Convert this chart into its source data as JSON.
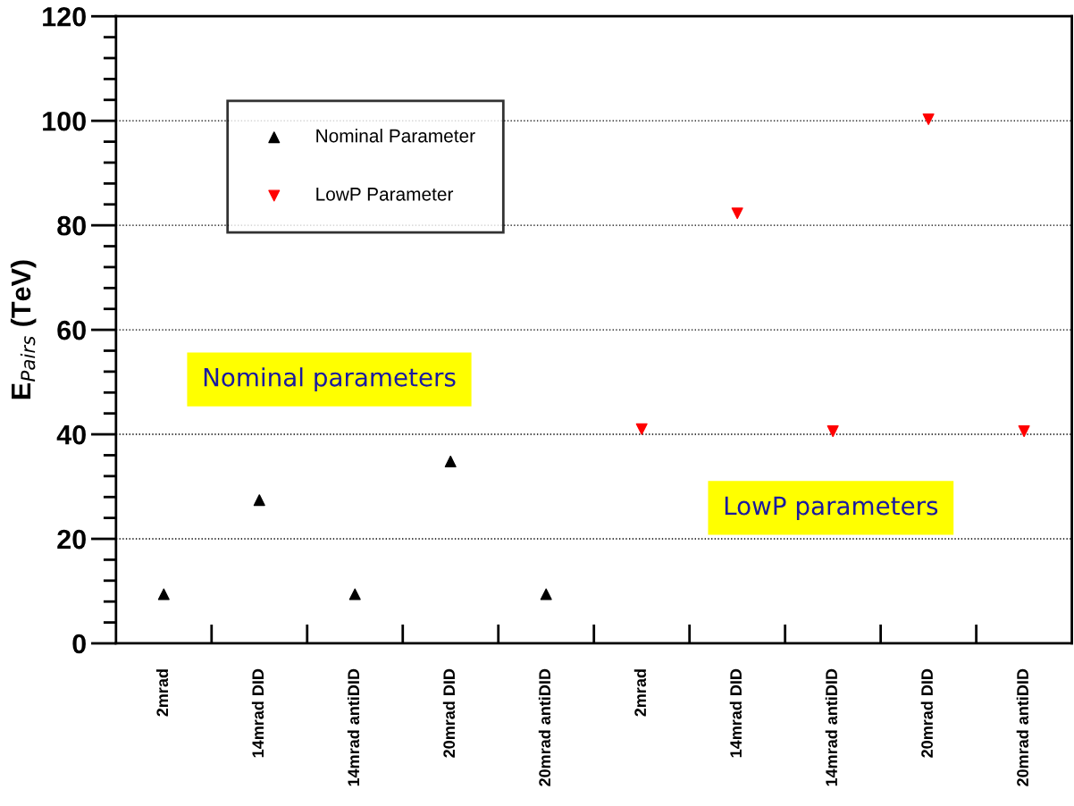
{
  "chart_data": {
    "type": "scatter",
    "ylabel": "E$_{Pairs}$ (TeV)",
    "categories": [
      "2mrad",
      "14mrad DID",
      "14mrad antiDID",
      "20mrad DID",
      "20mrad antiDID",
      "2mrad",
      "14mrad DID",
      "14mrad antiDID",
      "20mrad DID",
      "20mrad antiDID"
    ],
    "series": [
      {
        "name": "Nominal Parameter",
        "color": "#000000",
        "values": [
          9.4,
          27.4,
          9.4,
          34.8,
          9.4,
          null,
          null,
          null,
          null,
          null
        ]
      },
      {
        "name": "LowP Parameter",
        "color": "#ff0000",
        "values": [
          null,
          null,
          null,
          null,
          null,
          41.0,
          82.3,
          40.6,
          100.3,
          40.6
        ]
      }
    ],
    "ylim": [
      0,
      120
    ],
    "yticks": [
      0,
      20,
      40,
      60,
      80,
      100,
      120
    ],
    "grid": "y",
    "legend": "top left",
    "marker": "triangle",
    "annotations": [
      "Nominal parameters",
      "LowP parameters"
    ]
  }
}
